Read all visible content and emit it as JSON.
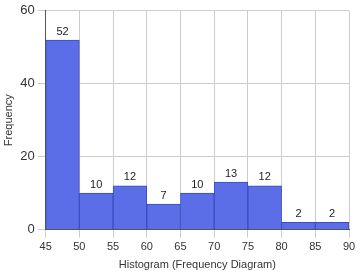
{
  "chart_data": {
    "type": "histogram",
    "bins": [
      45,
      50,
      55,
      60,
      65,
      70,
      75,
      80,
      85,
      90
    ],
    "values": [
      52,
      10,
      12,
      7,
      10,
      13,
      12,
      2,
      2
    ],
    "color": "#5b6ee8",
    "xlabel": "Histogram (Frequency Diagram)",
    "ylabel": "Frequency",
    "xlim": [
      45,
      90
    ],
    "xticks": [
      45,
      50,
      55,
      60,
      65,
      70,
      75,
      80,
      85,
      90
    ],
    "ylim": [
      0,
      60
    ],
    "yticks": [
      0,
      20,
      40,
      60
    ],
    "grid": true,
    "data_labels": true
  }
}
